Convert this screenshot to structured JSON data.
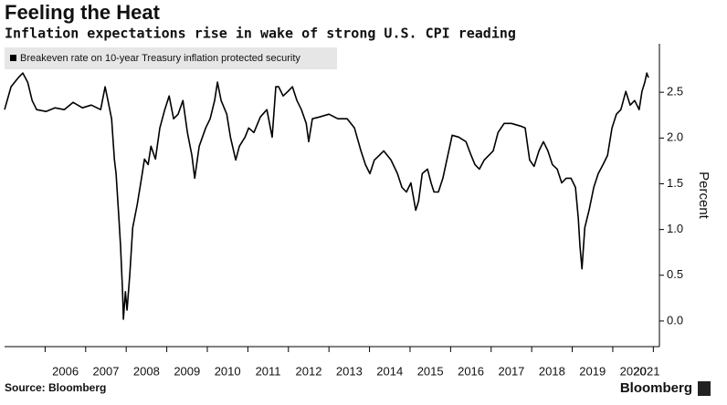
{
  "chart_data": {
    "type": "line",
    "title": "Feeling the Heat",
    "subtitle": "Inflation expectations rise in wake of strong U.S. CPI reading",
    "y_axis_label": "Percent",
    "source": "Source: Bloomberg",
    "brand": "Bloomberg",
    "xlim": [
      2005.0,
      2021.15
    ],
    "xticks": [
      2006,
      2007,
      2008,
      2009,
      2010,
      2011,
      2012,
      2013,
      2014,
      2015,
      2016,
      2017,
      2018,
      2019,
      2020,
      2021
    ],
    "ylim": [
      -0.28,
      3.03
    ],
    "yticks": [
      {
        "value": 0,
        "label": "0.0"
      },
      0.5,
      {
        "value": 1,
        "label": "1.0"
      },
      1.5,
      {
        "value": 2,
        "label": "2.0"
      },
      2.5
    ],
    "grid": false,
    "legend": "top-left",
    "x": [
      2005.0,
      2005.16,
      2005.34,
      2005.45,
      2005.57,
      2005.68,
      2005.79,
      2006.02,
      2006.24,
      2006.47,
      2006.69,
      2006.92,
      2007.14,
      2007.37,
      2007.48,
      2007.55,
      2007.64,
      2007.71,
      2007.75,
      2007.82,
      2007.86,
      2007.91,
      2007.93,
      2007.98,
      2008.02,
      2008.09,
      2008.16,
      2008.27,
      2008.38,
      2008.45,
      2008.54,
      2008.61,
      2008.72,
      2008.83,
      2008.95,
      2009.06,
      2009.17,
      2009.28,
      2009.4,
      2009.51,
      2009.62,
      2009.69,
      2009.8,
      2009.96,
      2010.07,
      2010.18,
      2010.25,
      2010.34,
      2010.48,
      2010.57,
      2010.7,
      2010.79,
      2010.93,
      2011.02,
      2011.15,
      2011.31,
      2011.47,
      2011.6,
      2011.69,
      2011.76,
      2011.87,
      2011.99,
      2012.1,
      2012.21,
      2012.32,
      2012.44,
      2012.5,
      2012.59,
      2012.77,
      2013.0,
      2013.22,
      2013.45,
      2013.63,
      2013.79,
      2013.9,
      2014.01,
      2014.12,
      2014.24,
      2014.35,
      2014.53,
      2014.69,
      2014.8,
      2014.91,
      2015.02,
      2015.14,
      2015.21,
      2015.3,
      2015.43,
      2015.52,
      2015.59,
      2015.7,
      2015.81,
      2015.93,
      2016.04,
      2016.2,
      2016.38,
      2016.49,
      2016.6,
      2016.71,
      2016.83,
      2017.05,
      2017.17,
      2017.32,
      2017.5,
      2017.73,
      2017.84,
      2017.95,
      2018.06,
      2018.18,
      2018.29,
      2018.4,
      2018.51,
      2018.63,
      2018.74,
      2018.85,
      2018.97,
      2019.08,
      2019.15,
      2019.19,
      2019.24,
      2019.31,
      2019.42,
      2019.53,
      2019.64,
      2019.76,
      2019.87,
      2019.98,
      2020.09,
      2020.2,
      2020.32,
      2020.43,
      2020.54,
      2020.65,
      2020.72,
      2020.79,
      2020.84,
      2020.88
    ],
    "series": [
      {
        "name": "Breakeven rate on 10-year Treasury inflation protected security",
        "color": "#000000",
        "values": [
          2.31,
          2.56,
          2.66,
          2.71,
          2.61,
          2.41,
          2.31,
          2.29,
          2.33,
          2.31,
          2.39,
          2.33,
          2.36,
          2.31,
          2.56,
          2.41,
          2.21,
          1.76,
          1.61,
          1.12,
          0.82,
          0.32,
          0.02,
          0.32,
          0.12,
          0.52,
          1.02,
          1.27,
          1.57,
          1.77,
          1.71,
          1.91,
          1.77,
          2.11,
          2.31,
          2.46,
          2.21,
          2.26,
          2.41,
          2.06,
          1.81,
          1.56,
          1.91,
          2.11,
          2.21,
          2.41,
          2.61,
          2.41,
          2.26,
          2.01,
          1.76,
          1.91,
          2.01,
          2.11,
          2.06,
          2.23,
          2.31,
          2.01,
          2.56,
          2.56,
          2.46,
          2.51,
          2.56,
          2.41,
          2.31,
          2.16,
          1.96,
          2.21,
          2.23,
          2.26,
          2.21,
          2.21,
          2.11,
          1.86,
          1.71,
          1.61,
          1.76,
          1.81,
          1.86,
          1.76,
          1.61,
          1.46,
          1.41,
          1.51,
          1.21,
          1.31,
          1.61,
          1.66,
          1.51,
          1.41,
          1.41,
          1.56,
          1.81,
          2.03,
          2.01,
          1.96,
          1.83,
          1.71,
          1.66,
          1.76,
          1.86,
          2.06,
          2.16,
          2.16,
          2.13,
          2.11,
          1.76,
          1.69,
          1.86,
          1.96,
          1.86,
          1.71,
          1.66,
          1.51,
          1.56,
          1.56,
          1.46,
          1.12,
          0.82,
          0.57,
          1.02,
          1.22,
          1.46,
          1.61,
          1.71,
          1.81,
          2.11,
          2.26,
          2.31,
          2.51,
          2.36,
          2.41,
          2.31,
          2.51,
          2.61,
          2.71,
          2.66
        ]
      }
    ]
  }
}
